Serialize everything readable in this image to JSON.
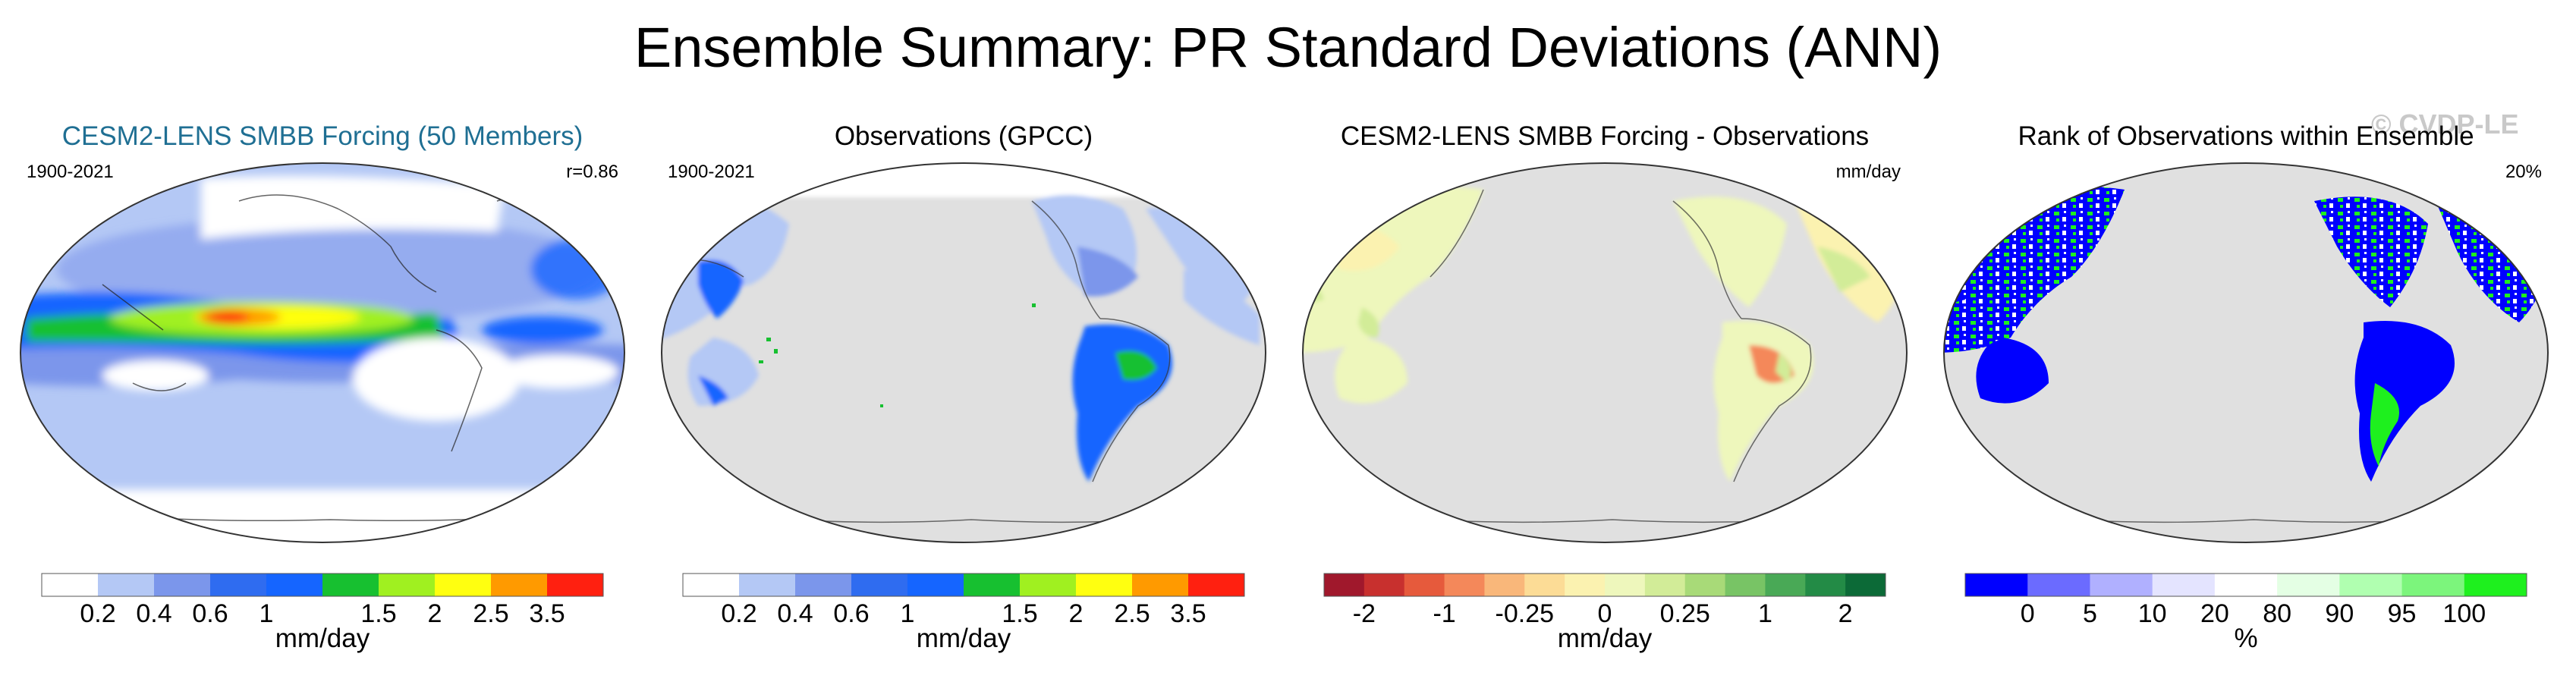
{
  "figure": {
    "title": "Ensemble Summary: PR Standard Deviations (ANN)",
    "watermark": "© CVDP-LE"
  },
  "panels": [
    {
      "title": "CESM2-LENS SMBB Forcing (50 Members)",
      "period": "1900-2021",
      "corner": "r=0.86",
      "colorbar": {
        "label": "mm/day",
        "colors": [
          "#ffffff",
          "#b4c8f5",
          "#7b96eb",
          "#2f6cf0",
          "#1565ff",
          "#17c030",
          "#a0f020",
          "#ffff10",
          "#ff9a00",
          "#ff2010"
        ],
        "ticks": [
          "0.2",
          "0.4",
          "0.6",
          "1",
          "1.5",
          "2",
          "2.5",
          "3.5"
        ]
      }
    },
    {
      "title": "Observations (GPCC)",
      "period": "1900-2021",
      "corner": "",
      "colorbar": {
        "label": "mm/day",
        "colors": [
          "#ffffff",
          "#b4c8f5",
          "#7b96eb",
          "#2f6cf0",
          "#1565ff",
          "#17c030",
          "#a0f020",
          "#ffff10",
          "#ff9a00",
          "#ff2010"
        ],
        "ticks": [
          "0.2",
          "0.4",
          "0.6",
          "1",
          "1.5",
          "2",
          "2.5",
          "3.5"
        ]
      }
    },
    {
      "title": "CESM2-LENS SMBB Forcing - Observations",
      "period": "",
      "corner": "mm/day",
      "colorbar": {
        "label": "mm/day",
        "colors": [
          "#a0182c",
          "#c8302e",
          "#e65a3c",
          "#f4885a",
          "#f9b77a",
          "#fcdc96",
          "#fbf2b0",
          "#eef7bc",
          "#d2ec98",
          "#a8da78",
          "#78c465",
          "#49a956",
          "#238b46",
          "#0c6a37"
        ],
        "ticks": [
          "-2",
          "-1",
          "-0.25",
          "0",
          "0.25",
          "1",
          "2"
        ]
      }
    },
    {
      "title": "Rank of Observations within Ensemble",
      "period": "",
      "corner": "20%",
      "colorbar": {
        "label": "%",
        "colors": [
          "#0000ff",
          "#6b6bff",
          "#b0b0ff",
          "#e4e4ff",
          "#ffffff",
          "#e4ffe4",
          "#b0ffb0",
          "#7cf57c",
          "#1ef01e"
        ],
        "ticks": [
          "0",
          "5",
          "10",
          "20",
          "80",
          "90",
          "95",
          "100"
        ]
      }
    }
  ]
}
